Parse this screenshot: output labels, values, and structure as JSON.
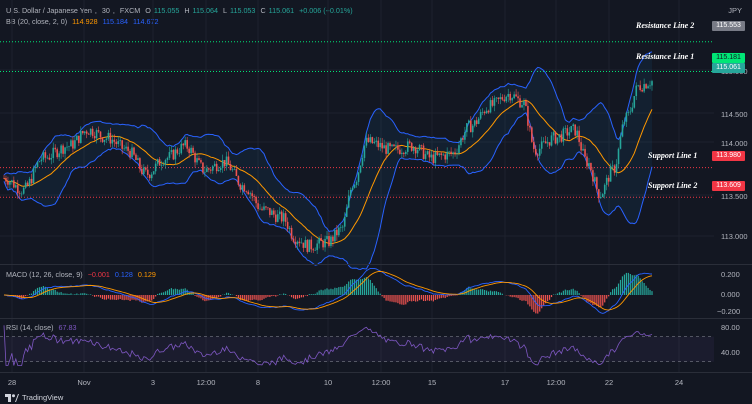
{
  "instrument": {
    "name": "U.S. Dollar / Japanese Yen",
    "interval": "30",
    "source": "FXCM",
    "open_label": "O",
    "open": "115.055",
    "high_label": "H",
    "high": "115.064",
    "low_label": "L",
    "low": "115.053",
    "close_label": "C",
    "close": "115.061",
    "change": "+0.006 (+0.01%)",
    "currency": "JPY"
  },
  "bb": {
    "name": "BB (20, close, 2, 0)",
    "basis": "114.928",
    "upper": "115.184",
    "lower": "114.672"
  },
  "macd": {
    "name": "MACD (12, 26, close, 9)",
    "hist": "−0.001",
    "macd": "0.128",
    "signal": "0.129",
    "ticks": [
      "0.200",
      "0.000",
      "−0.200"
    ]
  },
  "rsi": {
    "name": "RSI (14, close)",
    "value": "67.83",
    "ticks": [
      "80.00",
      "40.00"
    ]
  },
  "price_axis": {
    "ticks": [
      "115.000",
      "114.500",
      "114.000",
      "113.500",
      "113.000"
    ],
    "tags": [
      {
        "text": "115.553",
        "color": "#787b86"
      },
      {
        "text": "115.181",
        "color": "#00e676"
      },
      {
        "text": "115.061",
        "color": "#26a69a"
      },
      {
        "text": "113.980",
        "color": "#f23645"
      },
      {
        "text": "113.609",
        "color": "#f23645"
      }
    ]
  },
  "levels": {
    "resistance2": {
      "label": "Resistance Line 2",
      "price": 115.553
    },
    "resistance1": {
      "label": "Resistance Line 1",
      "price": 115.181
    },
    "support1": {
      "label": "Support Line 1",
      "price": 113.98
    },
    "support2": {
      "label": "Support Line 2",
      "price": 113.609
    }
  },
  "time_axis": [
    "28",
    "Nov",
    "3",
    "12:00",
    "8",
    "10",
    "12:00",
    "15",
    "17",
    "12:00",
    "22",
    "24"
  ],
  "branding": {
    "text": "TradingView"
  },
  "colors": {
    "background": "#131722",
    "up": "#26a69a",
    "down": "#ef5350",
    "bb_basis": "#ff9800",
    "bb_band": "#2962ff",
    "resistance": "#00e676",
    "support": "#f23645",
    "rsi": "#7e57c2"
  },
  "chart_data": {
    "type": "line",
    "series": [
      {
        "name": "USDJPY",
        "x": [
          "28",
          "Nov",
          "3",
          "12:00",
          "8",
          "10",
          "12:00",
          "15",
          "17",
          "12:00",
          "22",
          "24"
        ],
        "values": [
          113.9,
          114.5,
          114.2,
          114.3,
          113.7,
          113.0,
          114.3,
          114.1,
          114.9,
          114.2,
          113.7,
          115.06
        ]
      }
    ],
    "ylim": [
      112.8,
      115.7
    ]
  }
}
